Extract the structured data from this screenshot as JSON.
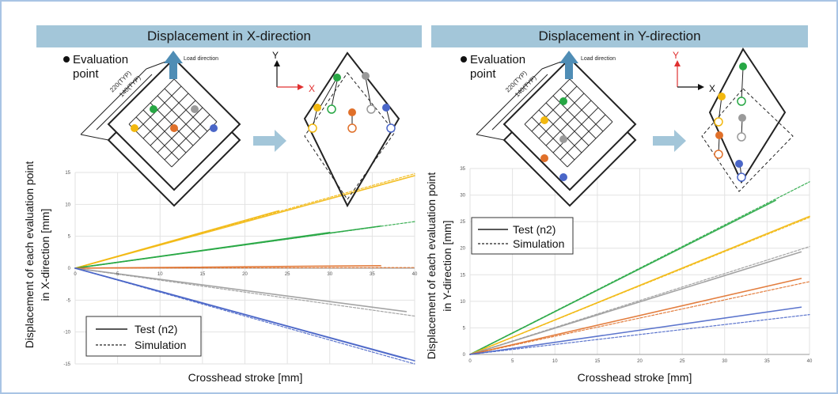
{
  "panels": [
    {
      "id": "x",
      "header": "Displacement in X-direction",
      "eval_label_line1": "Evaluation",
      "eval_label_line2": "point",
      "load_direction": "Load direction",
      "dim_220": "220(TYP)",
      "dim_140": "140(TYP)",
      "axis_y_letter": "Y",
      "axis_x_letter": "X",
      "highlight_axis": "x"
    },
    {
      "id": "y",
      "header": "Displacement in Y-direction",
      "eval_label_line1": "Evaluation",
      "eval_label_line2": "point",
      "load_direction": "Load direction",
      "dim_220": "220(TYP)",
      "dim_140": "140(TYP)",
      "axis_y_letter": "Y",
      "axis_x_letter": "X",
      "highlight_axis": "y"
    }
  ],
  "colors": {
    "yellow": "#f2b80f",
    "green": "#27a744",
    "gray": "#9a9a9a",
    "orange": "#e0702a",
    "blue": "#4a66c8",
    "red": "#e03030",
    "arrow": "#4f8db5"
  },
  "chart_data": [
    {
      "type": "line",
      "xlabel": "Crosshead stroke [mm]",
      "ylabel_line1": "Displacement of each evaluation point",
      "ylabel_line2": "in X-direction [mm]",
      "xlim": [
        0,
        40
      ],
      "ylim": [
        -15,
        15
      ],
      "xticks": [
        0,
        5,
        10,
        15,
        20,
        25,
        30,
        35,
        40
      ],
      "yticks": [
        -15,
        -10,
        -5,
        0,
        5,
        10,
        15
      ],
      "grid": true,
      "legend_position": "bottom-left",
      "legend": [
        {
          "label": "Test (n2)",
          "style": "solid"
        },
        {
          "label": "Simulation",
          "style": "dashed"
        }
      ],
      "series": [
        {
          "color": "yellow",
          "style": "solid",
          "points": [
            [
              0,
              0
            ],
            [
              24,
              9
            ]
          ]
        },
        {
          "color": "yellow",
          "style": "solid",
          "points": [
            [
              0,
              0
            ],
            [
              40,
              14.5
            ]
          ]
        },
        {
          "color": "yellow",
          "style": "dashed",
          "points": [
            [
              0,
              0
            ],
            [
              40,
              14.8
            ]
          ]
        },
        {
          "color": "green",
          "style": "solid",
          "points": [
            [
              0,
              0
            ],
            [
              30,
              5.6
            ]
          ]
        },
        {
          "color": "green",
          "style": "solid",
          "points": [
            [
              0,
              0
            ],
            [
              36,
              6.6
            ]
          ]
        },
        {
          "color": "green",
          "style": "dashed",
          "points": [
            [
              0,
              0
            ],
            [
              40,
              7.3
            ]
          ]
        },
        {
          "color": "orange",
          "style": "solid",
          "points": [
            [
              0,
              0
            ],
            [
              36,
              0.4
            ]
          ]
        },
        {
          "color": "orange",
          "style": "dashed",
          "points": [
            [
              0,
              0
            ],
            [
              40,
              0.1
            ]
          ]
        },
        {
          "color": "gray",
          "style": "solid",
          "points": [
            [
              0,
              0
            ],
            [
              39,
              -6.8
            ]
          ]
        },
        {
          "color": "gray",
          "style": "dashed",
          "points": [
            [
              0,
              0
            ],
            [
              40,
              -7.5
            ]
          ]
        },
        {
          "color": "blue",
          "style": "solid",
          "points": [
            [
              0,
              0
            ],
            [
              40,
              -14.5
            ]
          ]
        },
        {
          "color": "blue",
          "style": "solid",
          "points": [
            [
              0,
              0
            ],
            [
              39,
              -14.2
            ]
          ]
        },
        {
          "color": "blue",
          "style": "dashed",
          "points": [
            [
              0,
              0
            ],
            [
              40,
              -15
            ]
          ]
        }
      ]
    },
    {
      "type": "line",
      "xlabel": "Crosshead stroke [mm]",
      "ylabel_line1": "Displacement of each evaluation point",
      "ylabel_line2": "in Y-direction [mm]",
      "xlim": [
        0,
        40
      ],
      "ylim": [
        0,
        35
      ],
      "xticks": [
        0,
        5,
        10,
        15,
        20,
        25,
        30,
        35,
        40
      ],
      "yticks": [
        0,
        5,
        10,
        15,
        20,
        25,
        30,
        35
      ],
      "grid": true,
      "legend_position": "top-left",
      "legend": [
        {
          "label": "Test (n2)",
          "style": "solid"
        },
        {
          "label": "Simulation",
          "style": "dashed"
        }
      ],
      "series": [
        {
          "color": "green",
          "style": "solid",
          "points": [
            [
              0,
              0
            ],
            [
              36,
              29
            ]
          ]
        },
        {
          "color": "green",
          "style": "dashed",
          "points": [
            [
              0,
              0
            ],
            [
              40,
              32.5
            ]
          ]
        },
        {
          "color": "yellow",
          "style": "solid",
          "points": [
            [
              0,
              0
            ],
            [
              40,
              26
            ]
          ]
        },
        {
          "color": "yellow",
          "style": "dashed",
          "points": [
            [
              0,
              0
            ],
            [
              40,
              25.8
            ]
          ]
        },
        {
          "color": "gray",
          "style": "solid",
          "points": [
            [
              0,
              0
            ],
            [
              39,
              19.3
            ]
          ]
        },
        {
          "color": "gray",
          "style": "dashed",
          "points": [
            [
              0,
              0
            ],
            [
              40,
              20.3
            ]
          ]
        },
        {
          "color": "orange",
          "style": "solid",
          "points": [
            [
              0,
              0
            ],
            [
              39,
              14.3
            ]
          ]
        },
        {
          "color": "orange",
          "style": "dashed",
          "points": [
            [
              0,
              0
            ],
            [
              40,
              13.7
            ]
          ]
        },
        {
          "color": "blue",
          "style": "solid",
          "points": [
            [
              0,
              0
            ],
            [
              39,
              8.9
            ]
          ]
        },
        {
          "color": "blue",
          "style": "dashed",
          "points": [
            [
              0,
              0
            ],
            [
              40,
              7.5
            ]
          ]
        }
      ]
    }
  ]
}
